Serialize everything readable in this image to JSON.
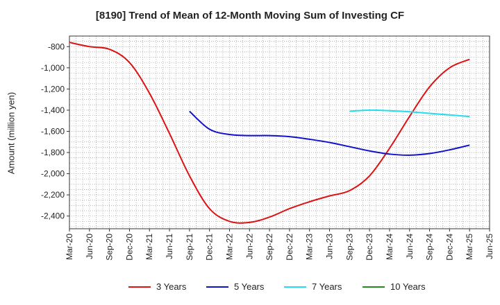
{
  "chart_data": {
    "type": "line",
    "title": "[8190]  Trend of Mean of 12-Month Moving Sum of Investing CF",
    "ylabel": "Amount (million yen)",
    "xlabel": "",
    "ylim": [
      -2520,
      -700
    ],
    "yticks": [
      -800,
      -1000,
      -1200,
      -1400,
      -1600,
      -1800,
      -2000,
      -2200,
      -2400
    ],
    "ytick_labels": [
      "-800",
      "-1,000",
      "-1,200",
      "-1,400",
      "-1,600",
      "-1,800",
      "-2,000",
      "-2,200",
      "-2,400"
    ],
    "x_tick_labels": [
      "Mar-20",
      "Jun-20",
      "Sep-20",
      "Dec-20",
      "Mar-21",
      "Jun-21",
      "Sep-21",
      "Dec-21",
      "Mar-22",
      "Jun-22",
      "Sep-22",
      "Dec-22",
      "Mar-23",
      "Jun-23",
      "Sep-23",
      "Dec-23",
      "Mar-24",
      "Jun-24",
      "Sep-24",
      "Dec-24",
      "Mar-25",
      "Jun-25"
    ],
    "grid": true,
    "legend_position": "bottom",
    "series": [
      {
        "name": "3 Years",
        "color": "#dd1111",
        "x": [
          "Mar-20",
          "Jun-20",
          "Sep-20",
          "Dec-20",
          "Mar-21",
          "Jun-21",
          "Sep-21",
          "Dec-21",
          "Mar-22",
          "Jun-22",
          "Sep-22",
          "Dec-22",
          "Mar-23",
          "Jun-23",
          "Sep-23",
          "Dec-23",
          "Mar-24",
          "Jun-24",
          "Sep-24",
          "Dec-24",
          "Mar-25"
        ],
        "values": [
          -760,
          -800,
          -825,
          -950,
          -1240,
          -1620,
          -2020,
          -2330,
          -2450,
          -2460,
          -2410,
          -2330,
          -2265,
          -2210,
          -2160,
          -2020,
          -1760,
          -1460,
          -1180,
          -1000,
          -920
        ]
      },
      {
        "name": "5 Years",
        "color": "#1111cc",
        "x": [
          "Sep-21",
          "Dec-21",
          "Mar-22",
          "Jun-22",
          "Sep-22",
          "Dec-22",
          "Mar-23",
          "Jun-23",
          "Sep-23",
          "Dec-23",
          "Mar-24",
          "Jun-24",
          "Sep-24",
          "Dec-24",
          "Mar-25"
        ],
        "values": [
          -1410,
          -1580,
          -1630,
          -1640,
          -1640,
          -1650,
          -1675,
          -1705,
          -1745,
          -1785,
          -1815,
          -1825,
          -1810,
          -1775,
          -1730
        ]
      },
      {
        "name": "7 Years",
        "color": "#22ddee",
        "x": [
          "Sep-23",
          "Dec-23",
          "Mar-24",
          "Jun-24",
          "Sep-24",
          "Dec-24",
          "Mar-25"
        ],
        "values": [
          -1410,
          -1400,
          -1405,
          -1415,
          -1430,
          -1445,
          -1460
        ]
      },
      {
        "name": "10 Years",
        "color": "#228822",
        "x": [],
        "values": []
      }
    ]
  }
}
